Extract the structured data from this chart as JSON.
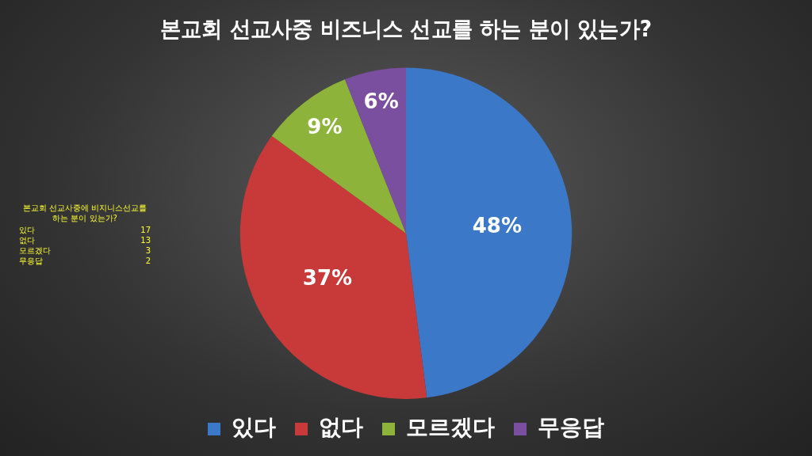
{
  "chart_data": {
    "type": "pie",
    "title": "본교회 선교사중 비즈니스 선교를 하는 분이 있는가?",
    "categories": [
      "있다",
      "없다",
      "모르겠다",
      "무응답"
    ],
    "values": [
      48,
      37,
      9,
      6
    ],
    "colors": [
      "#3b78c8",
      "#c8393a",
      "#8db33a",
      "#7a4fa0"
    ],
    "value_labels": [
      "48%",
      "37%",
      "9%",
      "6%"
    ],
    "annotations": [
      "본교회 선교사중에 비지니스선교를 하는 분이 있는가?",
      "있다 17",
      "없다 13",
      "모르겠다 3",
      "무응답 2"
    ],
    "legend": "bottom"
  }
}
